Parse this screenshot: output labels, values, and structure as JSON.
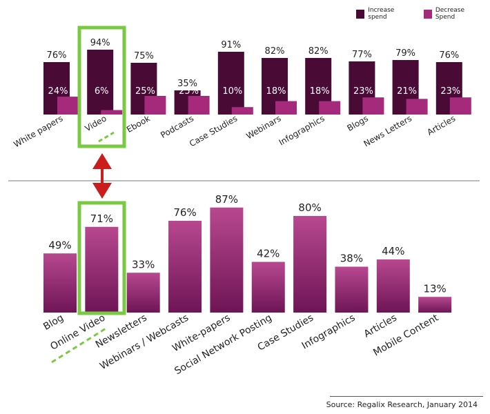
{
  "colors": {
    "increase": "#4a0a36",
    "decrease": "#a52a7c",
    "bottom_top": "#b8488f",
    "bottom_bottom": "#6e1556",
    "highlight": "#7ac943",
    "arrow": "#cc1d1d"
  },
  "legend": {
    "increase_label": "Increase spend",
    "decrease_label": "Decrease Spend"
  },
  "source": "Source: Regalix Research, January 2014",
  "chart_data": [
    {
      "type": "bar",
      "categories": [
        "White papers",
        "Video",
        "Ebook",
        "Podcasts",
        "Case Studies",
        "Webinars",
        "Infographics",
        "Blogs",
        "News Letters",
        "Articles"
      ],
      "series": [
        {
          "name": "Increase spend",
          "values": [
            76,
            94,
            75,
            35,
            91,
            82,
            82,
            77,
            79,
            76
          ],
          "labels": [
            "76%",
            "94%",
            "75%",
            "35%",
            "91%",
            "82%",
            "82%",
            "77%",
            "79%",
            "76%"
          ]
        },
        {
          "name": "Decrease Spend",
          "values": [
            24,
            6,
            25,
            25,
            10,
            18,
            18,
            23,
            21,
            23
          ],
          "labels": [
            "24%",
            "6%",
            "25%",
            "25%",
            "10%",
            "18%",
            "18%",
            "23%",
            "21%",
            "23%"
          ]
        }
      ],
      "ylim": [
        0,
        100
      ],
      "legend_position": "top-right",
      "highlighted_category": "Video"
    },
    {
      "type": "bar",
      "categories": [
        "Blog",
        "Online Video",
        "Newsletters",
        "Webinars / Webcasts",
        "White-papers",
        "Social Network Posting",
        "Case Studies",
        "Infographics",
        "Articles",
        "Mobile Content"
      ],
      "values": [
        49,
        71,
        33,
        76,
        87,
        42,
        80,
        38,
        44,
        13
      ],
      "labels": [
        "49%",
        "71%",
        "33%",
        "76%",
        "87%",
        "42%",
        "80%",
        "38%",
        "44%",
        "13%"
      ],
      "ylim": [
        0,
        100
      ],
      "highlighted_category": "Online Video"
    }
  ]
}
